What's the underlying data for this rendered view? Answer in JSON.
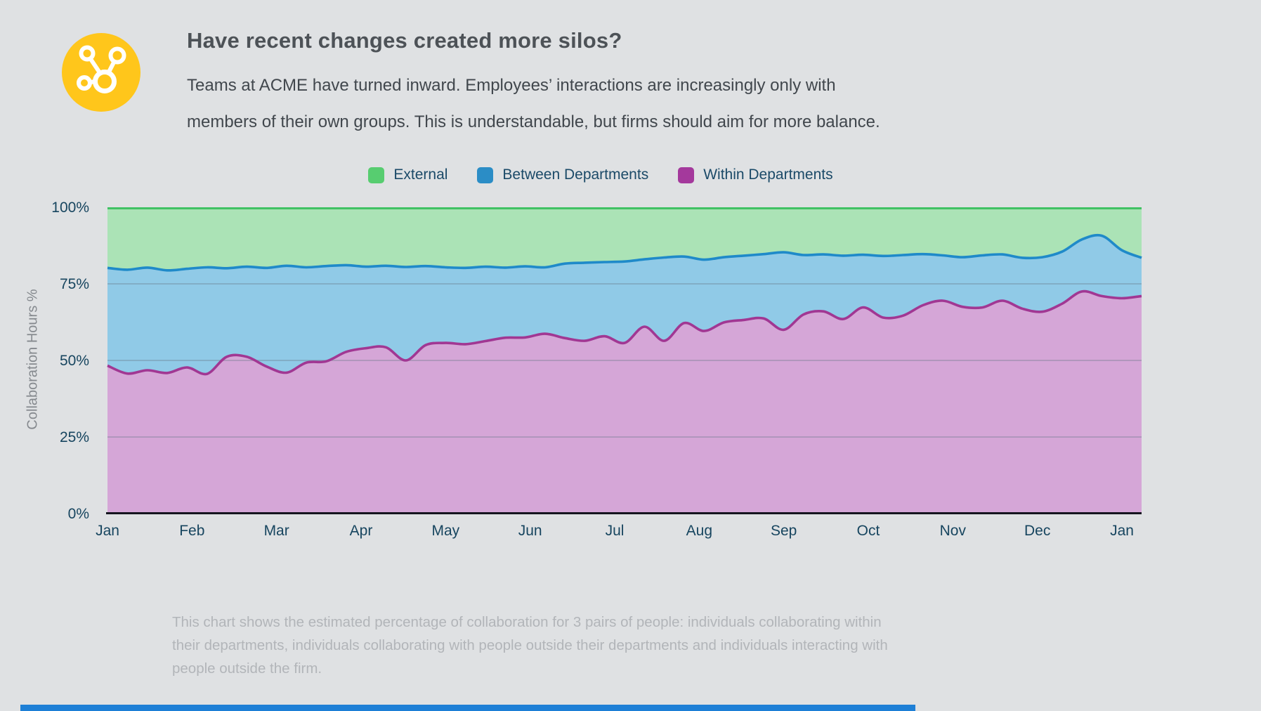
{
  "header": {
    "title": "Have recent changes created more silos?",
    "subtitle_lines": [
      "Teams at ACME have turned inward. Employees’ interactions are increasingly only with",
      "members of their own groups. This is understandable, but firms should aim for more balance."
    ],
    "icon": "share-network-icon",
    "icon_bg": "#ffc61b"
  },
  "legend": [
    {
      "label": "External",
      "color": "#57cd70"
    },
    {
      "label": "Between Departments",
      "color": "#2b8dc6"
    },
    {
      "label": "Within Departments",
      "color": "#a4399c"
    }
  ],
  "y_axis": {
    "title": "Collaboration Hours %",
    "ticks": [
      "100%",
      "75%",
      "50%",
      "25%",
      "0%"
    ]
  },
  "x_axis": {
    "ticks": [
      "Jan",
      "Feb",
      "Mar",
      "Apr",
      "May",
      "Jun",
      "Jul",
      "Aug",
      "Sep",
      "Oct",
      "Nov",
      "Dec",
      "Jan"
    ]
  },
  "caption_lines": [
    "This chart shows the estimated percentage of collaboration for 3 pairs of people: individuals collaborating within",
    "their departments, individuals collaborating with people outside their departments and individuals interacting with",
    "people outside the firm."
  ],
  "chart_data": {
    "type": "area",
    "stacked": true,
    "normalized_to": 100,
    "cadence": "weekly",
    "points": 53,
    "title": "Have recent changes created more silos?",
    "ylabel": "Collaboration Hours %",
    "ylim": [
      0,
      100
    ],
    "grid": "horizontal 25/50/75",
    "legend_position": "top-center",
    "x_month_labels": [
      "Jan",
      "Feb",
      "Mar",
      "Apr",
      "May",
      "Jun",
      "Jul",
      "Aug",
      "Sep",
      "Oct",
      "Nov",
      "Dec",
      "Jan"
    ],
    "series": [
      {
        "name": "Within Departments",
        "fill": "#d5a6d7",
        "line": "#a13793",
        "values": [
          48.3,
          45.7,
          46.8,
          45.9,
          47.7,
          45.6,
          51.2,
          51.2,
          48,
          46,
          49.3,
          49.7,
          52.8,
          54,
          54.3,
          50,
          55,
          55.7,
          55.3,
          56.3,
          57.4,
          57.5,
          58.7,
          57.3,
          56.4,
          57.9,
          55.7,
          61,
          56.4,
          62.2,
          59.6,
          62.4,
          63.2,
          63.7,
          60,
          65,
          66,
          63.5,
          67.3,
          64,
          64.6,
          68,
          69.5,
          67.5,
          67.3,
          69.5,
          66.9,
          65.9,
          68.5,
          72.5,
          71,
          70.3,
          71
        ]
      },
      {
        "name": "Between Departments",
        "fill": "#90cae7",
        "line": "#1f8ac9",
        "values": [
          31.9,
          33.9,
          33.5,
          33.5,
          32.2,
          34.8,
          28.9,
          29.4,
          32.2,
          34.9,
          31.1,
          31.1,
          28.3,
          26.6,
          26.6,
          30.5,
          25.8,
          24.7,
          24.9,
          24.3,
          22.9,
          23.2,
          21.7,
          24.3,
          25.5,
          24.2,
          26.6,
          22,
          27.2,
          21.7,
          23.3,
          21.3,
          21,
          21,
          25.3,
          19.4,
          18.6,
          20.7,
          17.2,
          20.1,
          19.8,
          16.7,
          14.8,
          16.2,
          17,
          15.1,
          16.6,
          17.8,
          17,
          17,
          19.7,
          15.7,
          12.5
        ]
      },
      {
        "name": "External",
        "fill": "#abe3b6",
        "line": "#41c264",
        "values": [
          19.8,
          20.4,
          19.7,
          20.6,
          20.1,
          19.6,
          19.9,
          19.4,
          19.8,
          19.1,
          19.6,
          19.2,
          18.9,
          19.4,
          19.1,
          19.5,
          19.2,
          19.6,
          19.8,
          19.4,
          19.7,
          19.3,
          19.6,
          18.4,
          18.1,
          17.9,
          17.7,
          17,
          16.4,
          16.1,
          17.1,
          16.3,
          15.8,
          15.3,
          14.7,
          15.6,
          15.4,
          15.8,
          15.5,
          15.9,
          15.6,
          15.3,
          15.7,
          16.3,
          15.7,
          15.4,
          16.5,
          16.3,
          14.5,
          10.5,
          9.3,
          14,
          16.5
        ]
      }
    ]
  }
}
